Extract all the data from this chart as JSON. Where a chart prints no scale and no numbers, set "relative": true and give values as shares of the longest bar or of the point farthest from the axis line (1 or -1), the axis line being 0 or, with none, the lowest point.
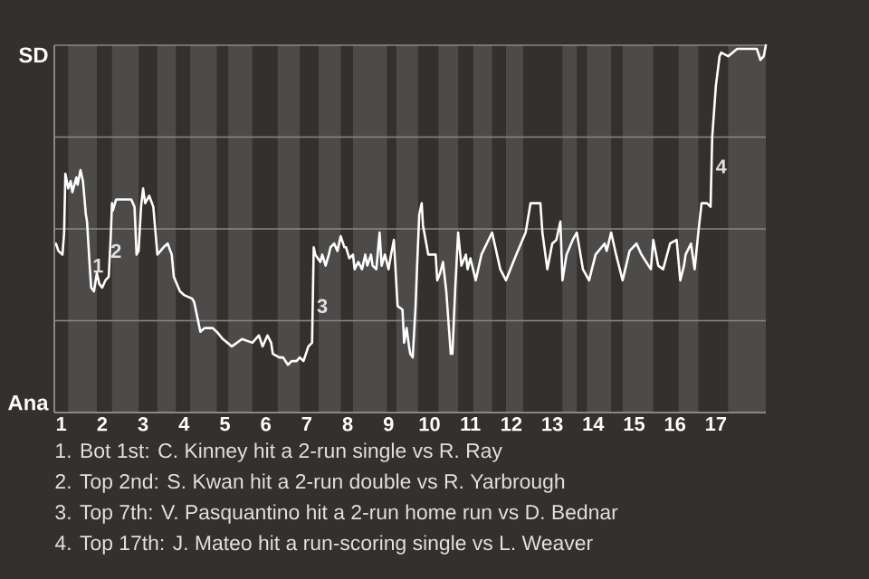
{
  "chart_data": {
    "type": "line",
    "relative": true,
    "x": [
      0.87,
      0.93,
      1.03,
      1.07,
      1.1,
      1.17,
      1.23,
      1.27,
      1.37,
      1.4,
      1.47,
      1.53,
      1.6,
      1.63,
      1.7,
      1.73,
      1.8,
      1.87,
      1.93,
      2.0,
      2.08,
      2.16,
      2.21,
      2.24,
      2.26,
      2.34,
      2.47,
      2.71,
      2.79,
      2.84,
      2.89,
      2.95,
      3.0,
      3.05,
      3.15,
      3.25,
      3.35,
      3.5,
      3.6,
      3.7,
      3.75,
      3.9,
      4.0,
      4.2,
      4.25,
      4.4,
      4.5,
      4.7,
      4.8,
      4.95,
      5.17,
      5.42,
      5.67,
      5.83,
      5.92,
      6.04,
      6.13,
      6.17,
      6.33,
      6.42,
      6.54,
      6.63,
      6.75,
      6.83,
      6.92,
      7.04,
      7.13,
      7.17,
      7.21,
      7.33,
      7.38,
      7.46,
      7.54,
      7.58,
      7.67,
      7.75,
      7.83,
      7.92,
      7.96,
      8.04,
      8.13,
      8.17,
      8.26,
      8.35,
      8.43,
      8.48,
      8.57,
      8.61,
      8.7,
      8.78,
      8.83,
      8.91,
      9.0,
      9.06,
      9.13,
      9.22,
      9.34,
      9.38,
      9.44,
      9.5,
      9.53,
      9.59,
      9.66,
      9.69,
      9.75,
      9.81,
      9.84,
      9.97,
      10.15,
      10.19,
      10.26,
      10.33,
      10.41,
      10.52,
      10.56,
      10.63,
      10.7,
      10.78,
      10.89,
      10.93,
      11.0,
      11.13,
      11.27,
      11.53,
      11.73,
      11.87,
      12.12,
      12.35,
      12.47,
      12.71,
      12.76,
      12.88,
      13.0,
      13.1,
      13.2,
      13.25,
      13.35,
      13.5,
      13.6,
      13.75,
      13.9,
      14.06,
      14.28,
      14.33,
      14.44,
      14.56,
      14.72,
      14.89,
      15.06,
      15.18,
      15.41,
      15.47,
      15.59,
      15.71,
      15.88,
      16.04,
      16.13,
      16.22,
      16.26,
      16.39,
      16.48,
      16.57,
      16.65,
      16.78,
      16.87,
      16.91,
      17.0,
      17.09,
      17.13,
      17.3,
      17.52,
      17.65,
      18.0,
      18.09,
      18.17,
      18.22
    ],
    "series": [
      {
        "color": "#ffffff",
        "values": [
          0.46,
          0.44,
          0.43,
          0.49,
          0.65,
          0.61,
          0.63,
          0.6,
          0.64,
          0.62,
          0.66,
          0.63,
          0.54,
          0.52,
          0.39,
          0.34,
          0.33,
          0.38,
          0.35,
          0.34,
          0.36,
          0.37,
          0.48,
          0.57,
          0.55,
          0.58,
          0.58,
          0.58,
          0.56,
          0.43,
          0.44,
          0.56,
          0.61,
          0.57,
          0.59,
          0.56,
          0.43,
          0.45,
          0.46,
          0.43,
          0.37,
          0.33,
          0.32,
          0.31,
          0.3,
          0.22,
          0.23,
          0.23,
          0.22,
          0.2,
          0.18,
          0.2,
          0.19,
          0.21,
          0.18,
          0.21,
          0.19,
          0.16,
          0.15,
          0.15,
          0.13,
          0.14,
          0.14,
          0.15,
          0.14,
          0.18,
          0.19,
          0.45,
          0.43,
          0.41,
          0.43,
          0.4,
          0.43,
          0.45,
          0.46,
          0.44,
          0.48,
          0.45,
          0.45,
          0.42,
          0.43,
          0.39,
          0.41,
          0.39,
          0.43,
          0.4,
          0.43,
          0.4,
          0.39,
          0.49,
          0.4,
          0.43,
          0.39,
          0.43,
          0.47,
          0.29,
          0.28,
          0.19,
          0.23,
          0.18,
          0.16,
          0.15,
          0.29,
          0.38,
          0.54,
          0.57,
          0.51,
          0.43,
          0.43,
          0.36,
          0.38,
          0.41,
          0.33,
          0.16,
          0.16,
          0.34,
          0.49,
          0.4,
          0.43,
          0.39,
          0.42,
          0.36,
          0.43,
          0.49,
          0.39,
          0.36,
          0.43,
          0.49,
          0.57,
          0.57,
          0.49,
          0.39,
          0.46,
          0.47,
          0.52,
          0.36,
          0.43,
          0.47,
          0.49,
          0.39,
          0.36,
          0.43,
          0.46,
          0.44,
          0.49,
          0.43,
          0.36,
          0.44,
          0.46,
          0.43,
          0.39,
          0.47,
          0.4,
          0.39,
          0.46,
          0.47,
          0.36,
          0.4,
          0.43,
          0.46,
          0.39,
          0.49,
          0.57,
          0.57,
          0.56,
          0.75,
          0.89,
          0.97,
          0.98,
          0.97,
          0.99,
          0.99,
          0.99,
          0.96,
          0.97,
          1.0
        ]
      }
    ],
    "xlim": [
      0.83,
      18.22
    ],
    "xticks": [
      1,
      2,
      3,
      4,
      5,
      6,
      7,
      8,
      9,
      10,
      11,
      12,
      13,
      14,
      15,
      16,
      17
    ],
    "ref_lines": [
      {
        "axis": "y",
        "value": 0.25,
        "color": "#8a8886"
      },
      {
        "axis": "y",
        "value": 0.5,
        "color": "#8a8886"
      },
      {
        "axis": "y",
        "value": 0.75,
        "color": "#8a8886"
      },
      {
        "axis": "y",
        "value": 1,
        "color": "#8a8886"
      }
    ],
    "bands": [
      {
        "axis": "x",
        "from": 1.17,
        "to": 1.87,
        "color": "#4d4b49"
      },
      {
        "axis": "x",
        "from": 2.24,
        "to": 2.89,
        "color": "#4d4b49"
      },
      {
        "axis": "x",
        "from": 3.35,
        "to": 3.8,
        "color": "#4d4b49"
      },
      {
        "axis": "x",
        "from": 4.15,
        "to": 4.8,
        "color": "#4d4b49"
      },
      {
        "axis": "x",
        "from": 5.08,
        "to": 5.67,
        "color": "#4d4b49"
      },
      {
        "axis": "x",
        "from": 6.29,
        "to": 6.83,
        "color": "#4d4b49"
      },
      {
        "axis": "x",
        "from": 7.29,
        "to": 7.83,
        "color": "#4d4b49"
      },
      {
        "axis": "x",
        "from": 8.13,
        "to": 8.96,
        "color": "#4d4b49"
      },
      {
        "axis": "x",
        "from": 9.19,
        "to": 9.72,
        "color": "#4d4b49"
      },
      {
        "axis": "x",
        "from": 10.22,
        "to": 10.7,
        "color": "#4d4b49"
      },
      {
        "axis": "x",
        "from": 11.07,
        "to": 11.53,
        "color": "#4d4b49"
      },
      {
        "axis": "x",
        "from": 11.87,
        "to": 12.29,
        "color": "#4d4b49"
      },
      {
        "axis": "x",
        "from": 13.25,
        "to": 13.6,
        "color": "#4d4b49"
      },
      {
        "axis": "x",
        "from": 13.85,
        "to": 14.44,
        "color": "#4d4b49"
      },
      {
        "axis": "x",
        "from": 14.72,
        "to": 15.47,
        "color": "#4d4b49"
      },
      {
        "axis": "x",
        "from": 16.09,
        "to": 16.57,
        "color": "#4d4b49"
      },
      {
        "axis": "x",
        "from": 17.3,
        "to": 18.22,
        "color": "#4d4b49"
      }
    ],
    "annotations": [
      {
        "text": "1",
        "x": 1.9,
        "y": 0.4
      },
      {
        "text": "2",
        "x": 2.34,
        "y": 0.44
      },
      {
        "text": "3",
        "x": 7.38,
        "y": 0.29
      },
      {
        "text": "4",
        "x": 17.13,
        "y": 0.67
      },
      "SD",
      "Ana",
      "1. Bot 1st: C. Kinney hit a 2-run single vs R. Ray",
      "2. Top 2nd: S. Kwan hit a 2-run double vs R. Yarbrough",
      "3. Top 7th: V. Pasquantino hit a 2-run home run vs D. Bednar",
      "4. Top 17th: J. Mateo hit a run-scoring single vs L. Weaver"
    ]
  }
}
